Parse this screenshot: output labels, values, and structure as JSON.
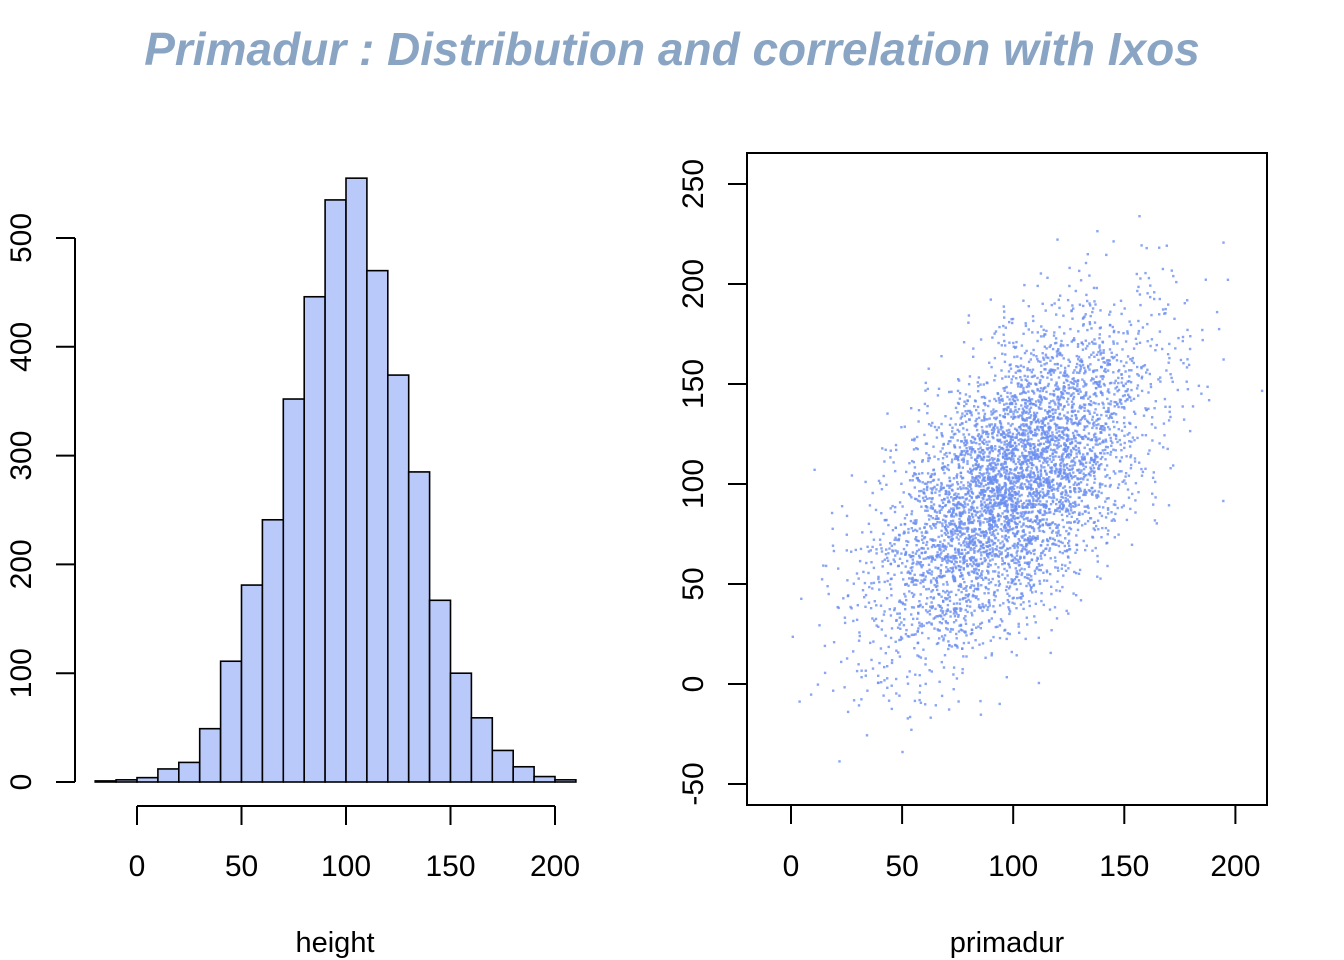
{
  "title": "Primadur : Distribution and correlation with Ixos",
  "colors": {
    "title": "#8aa5c4",
    "hist_fill": "#b9c9fa",
    "hist_stroke": "#000000",
    "scatter_point": "#6b8ff0"
  },
  "chart_data": [
    {
      "type": "bar",
      "subtype": "histogram",
      "title": "",
      "xlabel": "height",
      "ylabel": "",
      "bin_width": 10,
      "bin_starts": [
        -20,
        -10,
        0,
        10,
        20,
        30,
        40,
        50,
        60,
        70,
        80,
        90,
        100,
        110,
        120,
        130,
        140,
        150,
        160,
        170,
        180,
        190,
        200
      ],
      "values": [
        1,
        2,
        4,
        12,
        18,
        49,
        111,
        181,
        241,
        352,
        446,
        535,
        555,
        470,
        374,
        285,
        167,
        100,
        59,
        29,
        14,
        5,
        2
      ],
      "xlim": [
        -20,
        210
      ],
      "ylim": [
        0,
        500
      ],
      "x_ticks": [
        "0",
        "50",
        "100",
        "150",
        "200"
      ],
      "y_ticks": [
        "0",
        "100",
        "200",
        "300",
        "400",
        "500"
      ]
    },
    {
      "type": "scatter",
      "title": "",
      "xlabel": "primadur",
      "ylabel": "",
      "xlim": [
        -20,
        215
      ],
      "ylim": [
        -62,
        265
      ],
      "x_ticks": [
        "0",
        "50",
        "100",
        "150",
        "200"
      ],
      "y_ticks": [
        "-50",
        "0",
        "50",
        "100",
        "150",
        "200",
        "250"
      ],
      "n_points": 5000,
      "x_mean": 100,
      "x_sd": 30,
      "y_mean": 100,
      "y_sd": 40,
      "correlation": 0.6
    }
  ]
}
